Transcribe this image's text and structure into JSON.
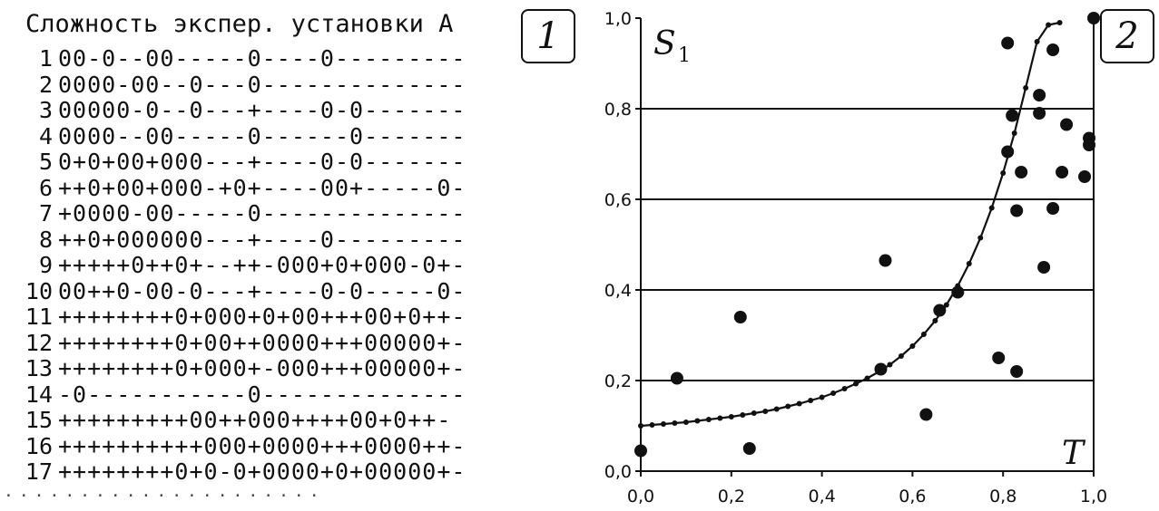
{
  "panel_left": {
    "badge": "1",
    "title": "Сложность экспер. установки А",
    "rows": [
      {
        "num": "1",
        "pattern": "00-0--00-----0----0---------"
      },
      {
        "num": "2",
        "pattern": "0000-00--0---0--------------"
      },
      {
        "num": "3",
        "pattern": "00000-0--0---+----0-0-------"
      },
      {
        "num": "4",
        "pattern": "0000--00-----0------0-------"
      },
      {
        "num": "5",
        "pattern": "0+0+00+000---+----0-0-------"
      },
      {
        "num": "6",
        "pattern": "++0+00+000-+0+----00+-----0-"
      },
      {
        "num": "7",
        "pattern": "+0000-00-----0--------------"
      },
      {
        "num": "8",
        "pattern": "++0+000000---+----0---------"
      },
      {
        "num": "9",
        "pattern": "+++++0++0+--++-000+0+000-0+-"
      },
      {
        "num": "10",
        "pattern": "00++0-00-0---+----0-0-----0-"
      },
      {
        "num": "11",
        "pattern": "++++++++0+000+0+00+++00+0++-"
      },
      {
        "num": "12",
        "pattern": "++++++++0+00++0000+++00000+-"
      },
      {
        "num": "13",
        "pattern": "++++++++0+000+-000+++00000+-"
      },
      {
        "num": "14",
        "pattern": "-0-----------0--------------"
      },
      {
        "num": "15",
        "pattern": "+++++++++00++000++++00+0++-"
      },
      {
        "num": "16",
        "pattern": "++++++++++000+0000+++0000++-"
      },
      {
        "num": "17",
        "pattern": "++++++++0+0-0+0000+0+00000+-"
      }
    ],
    "ellipsis": "·····················"
  },
  "panel_right": {
    "badge": "2"
  },
  "chart_data": {
    "type": "scatter",
    "title": "",
    "xlabel": "T",
    "ylabel": "S",
    "ylabel_subscript": "1",
    "xlim": [
      0.0,
      1.0
    ],
    "ylim": [
      0.0,
      1.0
    ],
    "x_ticks": [
      "0,0",
      "0,2",
      "0,4",
      "0,6",
      "0,8",
      "1,0"
    ],
    "y_ticks": [
      "0,0",
      "0,2",
      "0,4",
      "0,6",
      "0,8",
      "1,0"
    ],
    "grid": "horizontal",
    "series": [
      {
        "kind": "scatter",
        "points": [
          [
            0.0,
            0.045
          ],
          [
            0.08,
            0.205
          ],
          [
            0.22,
            0.34
          ],
          [
            0.24,
            0.05
          ],
          [
            0.53,
            0.225
          ],
          [
            0.54,
            0.465
          ],
          [
            0.63,
            0.125
          ],
          [
            0.66,
            0.355
          ],
          [
            0.7,
            0.395
          ],
          [
            0.79,
            0.25
          ],
          [
            0.81,
            0.945
          ],
          [
            0.81,
            0.705
          ],
          [
            0.82,
            0.785
          ],
          [
            0.83,
            0.22
          ],
          [
            0.83,
            0.575
          ],
          [
            0.84,
            0.66
          ],
          [
            0.88,
            0.79
          ],
          [
            0.88,
            0.83
          ],
          [
            0.89,
            0.45
          ],
          [
            0.91,
            0.93
          ],
          [
            0.91,
            0.58
          ],
          [
            0.93,
            0.66
          ],
          [
            0.94,
            0.765
          ],
          [
            0.98,
            0.65
          ],
          [
            0.99,
            0.735
          ],
          [
            0.99,
            0.72
          ],
          [
            1.0,
            1.0
          ]
        ]
      },
      {
        "kind": "trend-line",
        "points": [
          [
            0.0,
            0.1
          ],
          [
            0.025,
            0.102
          ],
          [
            0.05,
            0.104
          ],
          [
            0.075,
            0.106
          ],
          [
            0.1,
            0.108
          ],
          [
            0.125,
            0.111
          ],
          [
            0.15,
            0.114
          ],
          [
            0.175,
            0.117
          ],
          [
            0.2,
            0.12
          ],
          [
            0.225,
            0.124
          ],
          [
            0.25,
            0.128
          ],
          [
            0.275,
            0.132
          ],
          [
            0.3,
            0.137
          ],
          [
            0.325,
            0.143
          ],
          [
            0.35,
            0.149
          ],
          [
            0.375,
            0.156
          ],
          [
            0.4,
            0.163
          ],
          [
            0.425,
            0.172
          ],
          [
            0.45,
            0.182
          ],
          [
            0.475,
            0.193
          ],
          [
            0.5,
            0.205
          ],
          [
            0.525,
            0.219
          ],
          [
            0.55,
            0.235
          ],
          [
            0.575,
            0.254
          ],
          [
            0.6,
            0.276
          ],
          [
            0.625,
            0.302
          ],
          [
            0.65,
            0.332
          ],
          [
            0.675,
            0.367
          ],
          [
            0.7,
            0.409
          ],
          [
            0.725,
            0.458
          ],
          [
            0.75,
            0.515
          ],
          [
            0.775,
            0.581
          ],
          [
            0.8,
            0.658
          ],
          [
            0.825,
            0.746
          ],
          [
            0.85,
            0.846
          ],
          [
            0.875,
            0.948
          ],
          [
            0.9,
            0.985
          ],
          [
            0.925,
            0.99
          ]
        ]
      }
    ]
  }
}
